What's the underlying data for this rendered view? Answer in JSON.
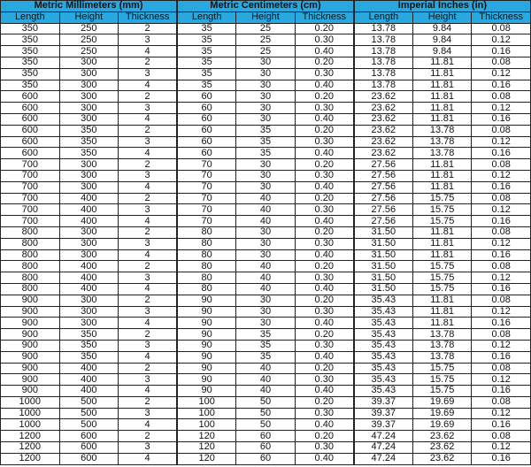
{
  "groups": [
    "Metric Millimeters (mm)",
    "Metric Centimeters (cm)",
    "Imperial Inches (in)"
  ],
  "columns": [
    "Length",
    "Height",
    "Thickness",
    "Length",
    "Height",
    "Thickness",
    "Length",
    "Height",
    "Thickness"
  ],
  "header_color": "#29a8e0",
  "rows": [
    [
      "350",
      "250",
      "2",
      "35",
      "25",
      "0.20",
      "13.78",
      "9.84",
      "0.08"
    ],
    [
      "350",
      "250",
      "3",
      "35",
      "25",
      "0.30",
      "13.78",
      "9.84",
      "0.12"
    ],
    [
      "350",
      "250",
      "4",
      "35",
      "25",
      "0.40",
      "13.78",
      "9.84",
      "0.16"
    ],
    [
      "350",
      "300",
      "2",
      "35",
      "30",
      "0.20",
      "13.78",
      "11.81",
      "0.08"
    ],
    [
      "350",
      "300",
      "3",
      "35",
      "30",
      "0.30",
      "13.78",
      "11.81",
      "0.12"
    ],
    [
      "350",
      "300",
      "4",
      "35",
      "30",
      "0.40",
      "13.78",
      "11.81",
      "0.16"
    ],
    [
      "600",
      "300",
      "2",
      "60",
      "30",
      "0.20",
      "23.62",
      "11.81",
      "0.08"
    ],
    [
      "600",
      "300",
      "3",
      "60",
      "30",
      "0.30",
      "23.62",
      "11.81",
      "0.12"
    ],
    [
      "600",
      "300",
      "4",
      "60",
      "30",
      "0.40",
      "23.62",
      "11.81",
      "0.16"
    ],
    [
      "600",
      "350",
      "2",
      "60",
      "35",
      "0.20",
      "23.62",
      "13.78",
      "0.08"
    ],
    [
      "600",
      "350",
      "3",
      "60",
      "35",
      "0.30",
      "23.62",
      "13.78",
      "0.12"
    ],
    [
      "600",
      "350",
      "4",
      "60",
      "35",
      "0.40",
      "23.62",
      "13.78",
      "0.16"
    ],
    [
      "700",
      "300",
      "2",
      "70",
      "30",
      "0.20",
      "27.56",
      "11.81",
      "0.08"
    ],
    [
      "700",
      "300",
      "3",
      "70",
      "30",
      "0.30",
      "27.56",
      "11.81",
      "0.12"
    ],
    [
      "700",
      "300",
      "4",
      "70",
      "30",
      "0.40",
      "27.56",
      "11.81",
      "0.16"
    ],
    [
      "700",
      "400",
      "2",
      "70",
      "40",
      "0.20",
      "27.56",
      "15.75",
      "0.08"
    ],
    [
      "700",
      "400",
      "3",
      "70",
      "40",
      "0.30",
      "27.56",
      "15.75",
      "0.12"
    ],
    [
      "700",
      "400",
      "4",
      "70",
      "40",
      "0.40",
      "27.56",
      "15.75",
      "0.16"
    ],
    [
      "800",
      "300",
      "2",
      "80",
      "30",
      "0.20",
      "31.50",
      "11.81",
      "0.08"
    ],
    [
      "800",
      "300",
      "3",
      "80",
      "30",
      "0.30",
      "31.50",
      "11.81",
      "0.12"
    ],
    [
      "800",
      "300",
      "4",
      "80",
      "30",
      "0.40",
      "31.50",
      "11.81",
      "0.16"
    ],
    [
      "800",
      "400",
      "2",
      "80",
      "40",
      "0.20",
      "31.50",
      "15.75",
      "0.08"
    ],
    [
      "800",
      "400",
      "3",
      "80",
      "40",
      "0.30",
      "31.50",
      "15.75",
      "0.12"
    ],
    [
      "800",
      "400",
      "4",
      "80",
      "40",
      "0.40",
      "31.50",
      "15.75",
      "0.16"
    ],
    [
      "900",
      "300",
      "2",
      "90",
      "30",
      "0.20",
      "35.43",
      "11.81",
      "0.08"
    ],
    [
      "900",
      "300",
      "3",
      "90",
      "30",
      "0.30",
      "35.43",
      "11.81",
      "0.12"
    ],
    [
      "900",
      "300",
      "4",
      "90",
      "30",
      "0.40",
      "35.43",
      "11.81",
      "0.16"
    ],
    [
      "900",
      "350",
      "2",
      "90",
      "35",
      "0.20",
      "35.43",
      "13.78",
      "0.08"
    ],
    [
      "900",
      "350",
      "3",
      "90",
      "35",
      "0.30",
      "35.43",
      "13.78",
      "0.12"
    ],
    [
      "900",
      "350",
      "4",
      "90",
      "35",
      "0.40",
      "35.43",
      "13.78",
      "0.16"
    ],
    [
      "900",
      "400",
      "2",
      "90",
      "40",
      "0.20",
      "35.43",
      "15.75",
      "0.08"
    ],
    [
      "900",
      "400",
      "3",
      "90",
      "40",
      "0.30",
      "35.43",
      "15.75",
      "0.12"
    ],
    [
      "900",
      "400",
      "4",
      "90",
      "40",
      "0.40",
      "35.43",
      "15.75",
      "0.16"
    ],
    [
      "1000",
      "500",
      "2",
      "100",
      "50",
      "0.20",
      "39.37",
      "19.69",
      "0.08"
    ],
    [
      "1000",
      "500",
      "3",
      "100",
      "50",
      "0.30",
      "39.37",
      "19.69",
      "0.12"
    ],
    [
      "1000",
      "500",
      "4",
      "100",
      "50",
      "0.40",
      "39.37",
      "19.69",
      "0.16"
    ],
    [
      "1200",
      "600",
      "2",
      "120",
      "60",
      "0.20",
      "47.24",
      "23.62",
      "0.08"
    ],
    [
      "1200",
      "600",
      "3",
      "120",
      "60",
      "0.30",
      "47.24",
      "23.62",
      "0.12"
    ],
    [
      "1200",
      "600",
      "4",
      "120",
      "60",
      "0.40",
      "47.24",
      "23.62",
      "0.16"
    ]
  ]
}
